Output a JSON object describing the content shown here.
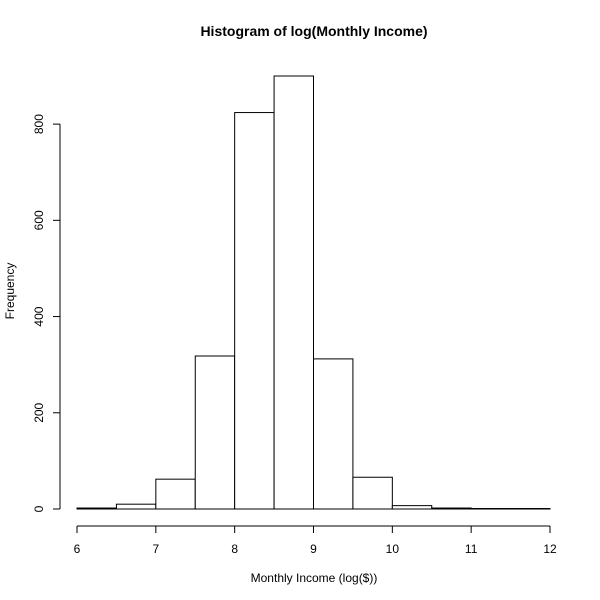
{
  "chart_data": {
    "type": "bar",
    "title": "Histogram of log(Monthly Income)",
    "xlabel": "Monthly Income (log($))",
    "ylabel": "Frequency",
    "bins": [
      {
        "from": 6.0,
        "to": 6.5,
        "count": 2
      },
      {
        "from": 6.5,
        "to": 7.0,
        "count": 10
      },
      {
        "from": 7.0,
        "to": 7.5,
        "count": 62
      },
      {
        "from": 7.5,
        "to": 8.0,
        "count": 318
      },
      {
        "from": 8.0,
        "to": 8.5,
        "count": 824
      },
      {
        "from": 8.5,
        "to": 9.0,
        "count": 900
      },
      {
        "from": 9.0,
        "to": 9.5,
        "count": 312
      },
      {
        "from": 9.5,
        "to": 10.0,
        "count": 66
      },
      {
        "from": 10.0,
        "to": 10.5,
        "count": 7
      },
      {
        "from": 10.5,
        "to": 11.0,
        "count": 2
      },
      {
        "from": 11.0,
        "to": 11.5,
        "count": 1
      },
      {
        "from": 11.5,
        "to": 12.0,
        "count": 1
      }
    ],
    "xlim": [
      6,
      12
    ],
    "ylim": [
      0,
      900
    ],
    "xticks": [
      6,
      7,
      8,
      9,
      10,
      11,
      12
    ],
    "yticks": [
      0,
      200,
      400,
      600,
      800
    ],
    "grid": false,
    "bar_fill": "#ffffff",
    "bar_stroke": "#000000"
  }
}
